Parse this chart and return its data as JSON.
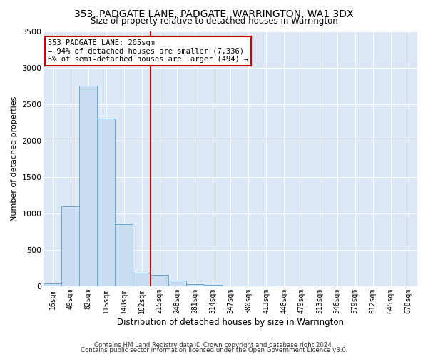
{
  "title": "353, PADGATE LANE, PADGATE, WARRINGTON, WA1 3DX",
  "subtitle": "Size of property relative to detached houses in Warrington",
  "xlabel": "Distribution of detached houses by size in Warrington",
  "ylabel": "Number of detached properties",
  "footer_line1": "Contains HM Land Registry data © Crown copyright and database right 2024.",
  "footer_line2": "Contains public sector information licensed under the Open Government Licence v3.0.",
  "annotation_line1": "353 PADGATE LANE: 205sqm",
  "annotation_line2": "← 94% of detached houses are smaller (7,336)",
  "annotation_line3": "6% of semi-detached houses are larger (494) →",
  "bin_labels": [
    "16sqm",
    "49sqm",
    "82sqm",
    "115sqm",
    "148sqm",
    "182sqm",
    "215sqm",
    "248sqm",
    "281sqm",
    "314sqm",
    "347sqm",
    "380sqm",
    "413sqm",
    "446sqm",
    "479sqm",
    "513sqm",
    "546sqm",
    "579sqm",
    "612sqm",
    "645sqm",
    "678sqm"
  ],
  "bar_values": [
    40,
    1100,
    2750,
    2300,
    850,
    190,
    155,
    75,
    30,
    15,
    10,
    5,
    5,
    3,
    0,
    0,
    0,
    0,
    0,
    0,
    0
  ],
  "bar_color": "#c9ddf0",
  "bar_edge_color": "#6aaad4",
  "vline_color": "#cc0000",
  "vline_x": 5.5,
  "annotation_box_color": "#cc0000",
  "background_color": "#dce8f5",
  "ylim": [
    0,
    3500
  ],
  "yticks": [
    0,
    500,
    1000,
    1500,
    2000,
    2500,
    3000,
    3500
  ]
}
